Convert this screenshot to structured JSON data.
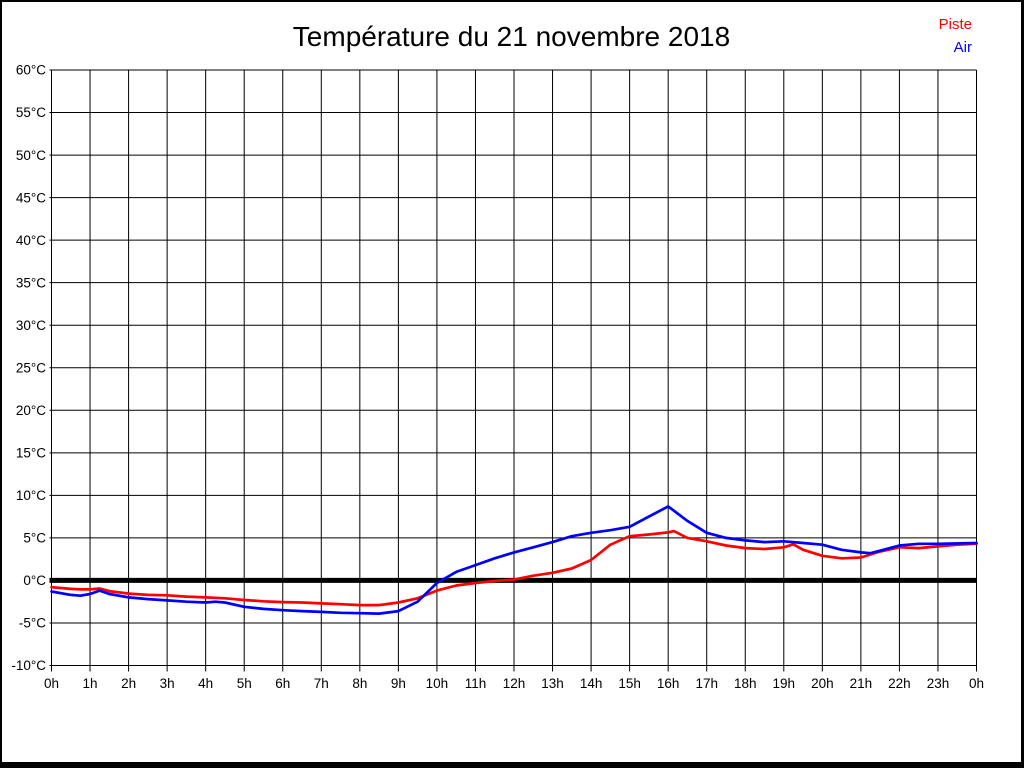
{
  "title": "Température du 21 novembre 2018",
  "legend": {
    "items": [
      {
        "label": "Piste",
        "color": "#ff0000"
      },
      {
        "label": "Air",
        "color": "#0000ff"
      }
    ]
  },
  "colors": {
    "background": "#ffffff",
    "grid": "#000000",
    "zero_line": "#000000",
    "piste": "#ff0000",
    "air": "#0000ff"
  },
  "chart_data": {
    "type": "line",
    "title": "Température du 21 novembre 2018",
    "xlabel": "",
    "ylabel": "",
    "x_unit": "hours",
    "y_unit": "°C",
    "xlim": [
      0,
      24
    ],
    "ylim": [
      -10,
      60
    ],
    "y_step": 5,
    "x_step": 1,
    "grid": true,
    "zero_line_bold": true,
    "legend_position": "top-right",
    "x_tick_labels": [
      "0h",
      "1h",
      "2h",
      "3h",
      "4h",
      "5h",
      "6h",
      "7h",
      "8h",
      "9h",
      "10h",
      "11h",
      "12h",
      "13h",
      "14h",
      "15h",
      "16h",
      "17h",
      "18h",
      "19h",
      "20h",
      "21h",
      "22h",
      "23h",
      "0h"
    ],
    "y_tick_labels": [
      "60°C",
      "55°C",
      "50°C",
      "45°C",
      "40°C",
      "35°C",
      "30°C",
      "25°C",
      "20°C",
      "15°C",
      "10°C",
      "5°C",
      "0°C",
      "-5°C",
      "-10°C"
    ],
    "series": [
      {
        "name": "Piste",
        "color": "#ff0000",
        "points": [
          [
            0,
            -0.8
          ],
          [
            0.5,
            -1.0
          ],
          [
            0.75,
            -1.05
          ],
          [
            1,
            -1.05
          ],
          [
            1.25,
            -0.95
          ],
          [
            1.5,
            -1.25
          ],
          [
            2,
            -1.55
          ],
          [
            2.5,
            -1.7
          ],
          [
            3,
            -1.75
          ],
          [
            3.5,
            -1.9
          ],
          [
            4,
            -2.0
          ],
          [
            4.5,
            -2.1
          ],
          [
            5,
            -2.3
          ],
          [
            5.5,
            -2.45
          ],
          [
            6,
            -2.55
          ],
          [
            6.5,
            -2.6
          ],
          [
            7,
            -2.7
          ],
          [
            7.5,
            -2.8
          ],
          [
            8,
            -2.9
          ],
          [
            8.5,
            -2.9
          ],
          [
            9,
            -2.6
          ],
          [
            9.5,
            -2.1
          ],
          [
            10,
            -1.2
          ],
          [
            10.5,
            -0.6
          ],
          [
            11,
            -0.3
          ],
          [
            11.5,
            -0.05
          ],
          [
            12,
            0.1
          ],
          [
            12.5,
            0.55
          ],
          [
            13,
            0.9
          ],
          [
            13.5,
            1.4
          ],
          [
            14,
            2.4
          ],
          [
            14.5,
            4.2
          ],
          [
            15,
            5.2
          ],
          [
            15.5,
            5.4
          ],
          [
            16,
            5.65
          ],
          [
            16.15,
            5.8
          ],
          [
            16.5,
            5.0
          ],
          [
            17,
            4.6
          ],
          [
            17.5,
            4.1
          ],
          [
            18,
            3.8
          ],
          [
            18.5,
            3.7
          ],
          [
            19,
            3.9
          ],
          [
            19.25,
            4.25
          ],
          [
            19.5,
            3.6
          ],
          [
            20,
            2.9
          ],
          [
            20.5,
            2.6
          ],
          [
            21,
            2.7
          ],
          [
            21.5,
            3.4
          ],
          [
            22,
            3.9
          ],
          [
            22.5,
            3.8
          ],
          [
            23,
            4.0
          ],
          [
            23.5,
            4.2
          ],
          [
            24,
            4.3
          ]
        ]
      },
      {
        "name": "Air",
        "color": "#0000ff",
        "points": [
          [
            0,
            -1.3
          ],
          [
            0.5,
            -1.7
          ],
          [
            0.75,
            -1.8
          ],
          [
            1,
            -1.6
          ],
          [
            1.25,
            -1.2
          ],
          [
            1.5,
            -1.6
          ],
          [
            2,
            -2.0
          ],
          [
            2.5,
            -2.2
          ],
          [
            3,
            -2.35
          ],
          [
            3.5,
            -2.5
          ],
          [
            4,
            -2.6
          ],
          [
            4.25,
            -2.5
          ],
          [
            4.5,
            -2.6
          ],
          [
            5,
            -3.1
          ],
          [
            5.5,
            -3.35
          ],
          [
            6,
            -3.5
          ],
          [
            6.5,
            -3.6
          ],
          [
            7,
            -3.7
          ],
          [
            7.5,
            -3.8
          ],
          [
            8,
            -3.85
          ],
          [
            8.5,
            -3.9
          ],
          [
            9,
            -3.6
          ],
          [
            9.5,
            -2.5
          ],
          [
            10,
            -0.3
          ],
          [
            10.5,
            1.0
          ],
          [
            11,
            1.8
          ],
          [
            11.5,
            2.6
          ],
          [
            12,
            3.3
          ],
          [
            12.5,
            3.9
          ],
          [
            13,
            4.5
          ],
          [
            13.5,
            5.2
          ],
          [
            14,
            5.6
          ],
          [
            14.5,
            5.9
          ],
          [
            15,
            6.3
          ],
          [
            15.5,
            7.5
          ],
          [
            16,
            8.7
          ],
          [
            16.5,
            7.0
          ],
          [
            17,
            5.6
          ],
          [
            17.5,
            5.0
          ],
          [
            18,
            4.7
          ],
          [
            18.5,
            4.5
          ],
          [
            19,
            4.6
          ],
          [
            19.5,
            4.4
          ],
          [
            20,
            4.2
          ],
          [
            20.5,
            3.6
          ],
          [
            21,
            3.3
          ],
          [
            21.25,
            3.2
          ],
          [
            21.5,
            3.5
          ],
          [
            22,
            4.1
          ],
          [
            22.5,
            4.3
          ],
          [
            23,
            4.3
          ],
          [
            24,
            4.4
          ]
        ]
      }
    ]
  }
}
